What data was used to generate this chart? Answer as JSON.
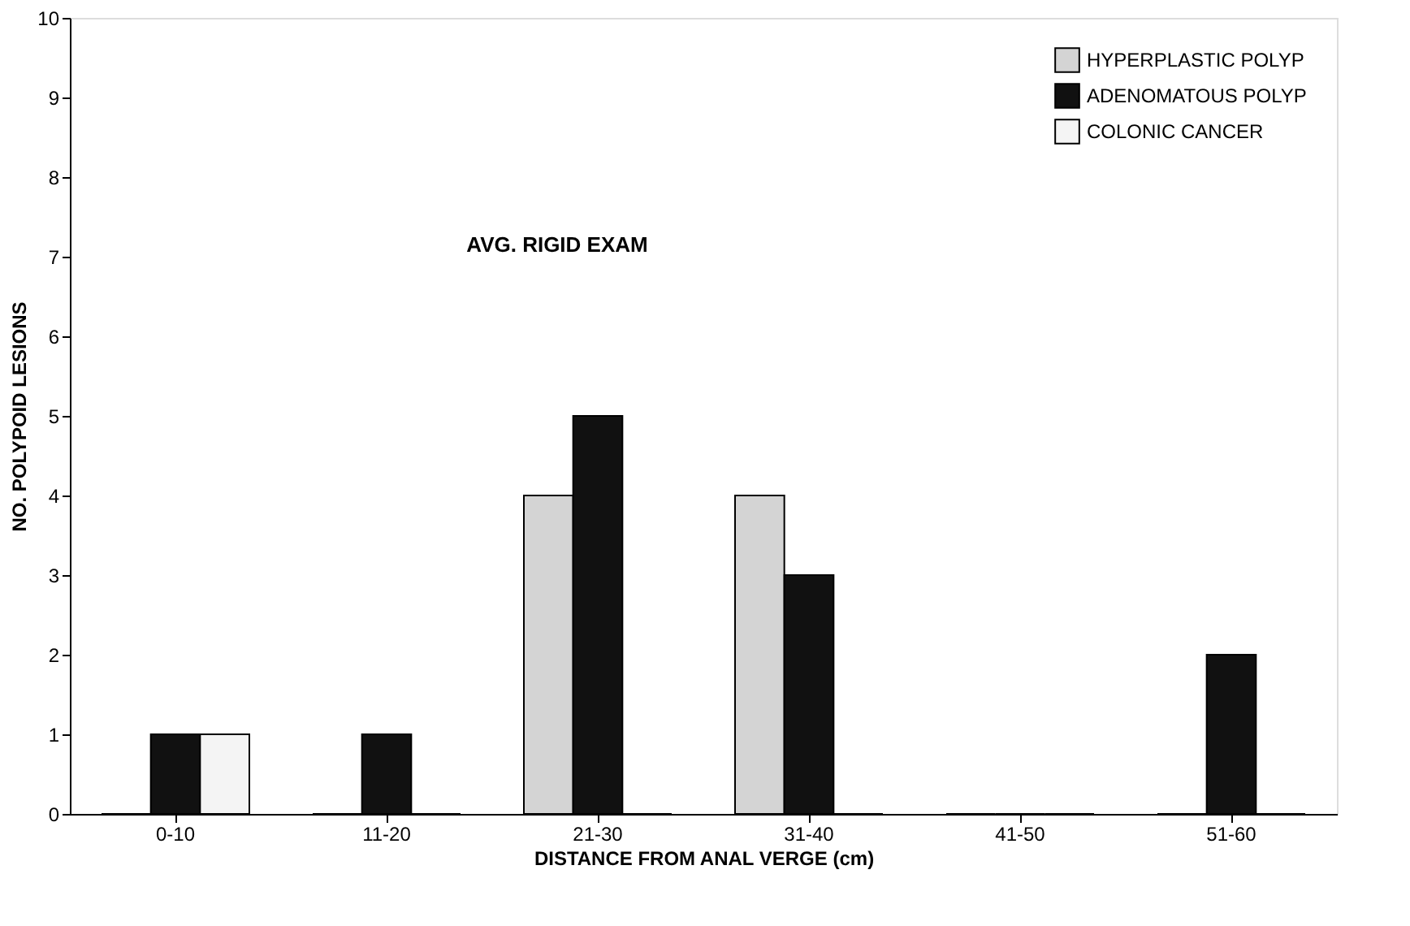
{
  "chart_data": {
    "type": "bar",
    "xlabel": "DISTANCE FROM ANAL VERGE (cm)",
    "ylabel": "NO. POLYPOID LESIONS",
    "categories": [
      "0-10",
      "11-20",
      "21-30",
      "31-40",
      "41-50",
      "51-60"
    ],
    "series": [
      {
        "name": "HYPERPLASTIC POLYP",
        "color": "#d4d4d4",
        "values": [
          0,
          0,
          4,
          4,
          0,
          0
        ]
      },
      {
        "name": "ADENOMATOUS POLYP",
        "color": "#111111",
        "values": [
          1,
          1,
          5,
          3,
          0,
          2
        ]
      },
      {
        "name": "COLONIC CANCER",
        "color": "#f4f4f4",
        "values": [
          1,
          0,
          0,
          0,
          0,
          0
        ]
      }
    ],
    "ylim": [
      0,
      10
    ],
    "yticks": [
      0,
      1,
      2,
      3,
      4,
      5,
      6,
      7,
      8,
      9,
      10
    ],
    "annotations": [
      "AVG. RIGID EXAM"
    ],
    "legend": "top right",
    "grid": false
  }
}
